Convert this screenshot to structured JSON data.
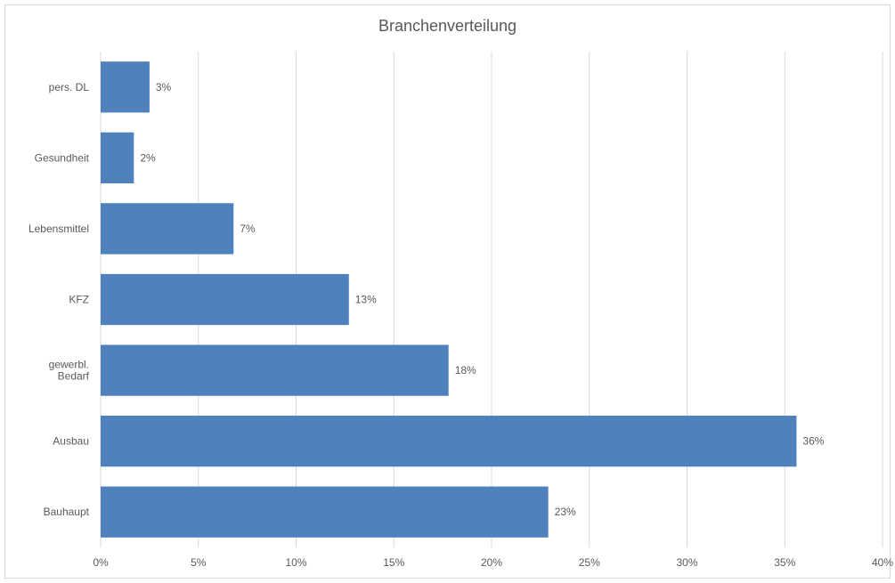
{
  "chart_data": {
    "type": "bar",
    "orientation": "horizontal",
    "title": "Branchenverteilung",
    "xlabel": "",
    "ylabel": "",
    "categories": [
      "pers. DL",
      "Gesundheit",
      "Lebensmittel",
      "KFZ",
      "gewerbl. Bedarf",
      "Ausbau",
      "Bauhaupt"
    ],
    "category_lines": [
      [
        "pers. DL"
      ],
      [
        "Gesundheit"
      ],
      [
        "Lebensmittel"
      ],
      [
        "KFZ"
      ],
      [
        "gewerbl.",
        "Bedarf"
      ],
      [
        "Ausbau"
      ],
      [
        "Bauhaupt"
      ]
    ],
    "values": [
      2.5,
      1.7,
      6.8,
      12.7,
      17.8,
      35.6,
      22.9
    ],
    "data_labels": [
      "3%",
      "2%",
      "7%",
      "13%",
      "18%",
      "36%",
      "23%"
    ],
    "xlim": [
      0,
      40
    ],
    "xticks": [
      0,
      5,
      10,
      15,
      20,
      25,
      30,
      35,
      40
    ],
    "xtick_labels": [
      "0%",
      "5%",
      "10%",
      "15%",
      "20%",
      "25%",
      "30%",
      "35%",
      "40%"
    ],
    "grid": "vertical",
    "legend": "none",
    "colors": {
      "bar": "#4f81bd",
      "grid": "#d9d9d9",
      "text": "#595959"
    }
  }
}
